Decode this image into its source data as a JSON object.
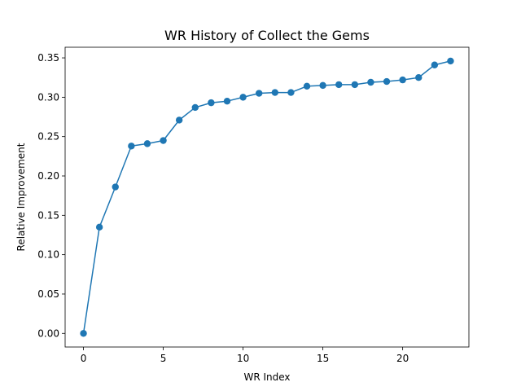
{
  "chart_data": {
    "type": "line",
    "title": "WR History of Collect the Gems",
    "xlabel": "WR Index",
    "ylabel": "Relative Improvement",
    "xlim": [
      -1.15,
      24.15
    ],
    "ylim": [
      -0.0173,
      0.3635
    ],
    "xticks": [
      0,
      5,
      10,
      15,
      20
    ],
    "xtick_labels": [
      "0",
      "5",
      "10",
      "15",
      "20"
    ],
    "yticks": [
      0.0,
      0.05,
      0.1,
      0.15,
      0.2,
      0.25,
      0.3,
      0.35
    ],
    "ytick_labels": [
      "0.00",
      "0.05",
      "0.10",
      "0.15",
      "0.20",
      "0.25",
      "0.30",
      "0.35"
    ],
    "grid": false,
    "series": [
      {
        "name": "WR History",
        "color": "#1f77b4",
        "marker": "circle",
        "x": [
          0,
          1,
          2,
          3,
          4,
          5,
          6,
          7,
          8,
          9,
          10,
          11,
          12,
          13,
          14,
          15,
          16,
          17,
          18,
          19,
          20,
          21,
          22,
          23
        ],
        "values": [
          0.0,
          0.135,
          0.186,
          0.238,
          0.241,
          0.245,
          0.271,
          0.287,
          0.293,
          0.295,
          0.3,
          0.305,
          0.306,
          0.306,
          0.314,
          0.315,
          0.316,
          0.316,
          0.319,
          0.32,
          0.322,
          0.325,
          0.341,
          0.346
        ]
      }
    ]
  }
}
